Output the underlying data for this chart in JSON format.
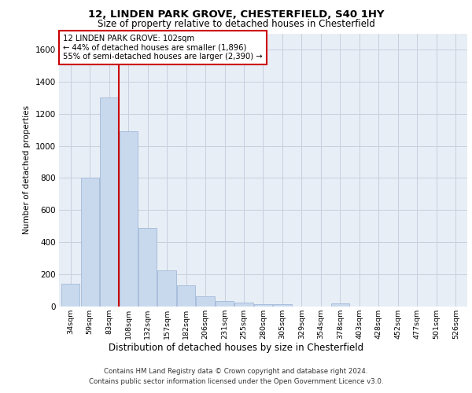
{
  "title1": "12, LINDEN PARK GROVE, CHESTERFIELD, S40 1HY",
  "title2": "Size of property relative to detached houses in Chesterfield",
  "xlabel": "Distribution of detached houses by size in Chesterfield",
  "ylabel": "Number of detached properties",
  "bar_labels": [
    "34sqm",
    "59sqm",
    "83sqm",
    "108sqm",
    "132sqm",
    "157sqm",
    "182sqm",
    "206sqm",
    "231sqm",
    "255sqm",
    "280sqm",
    "305sqm",
    "329sqm",
    "354sqm",
    "378sqm",
    "403sqm",
    "428sqm",
    "452sqm",
    "477sqm",
    "501sqm",
    "526sqm"
  ],
  "bar_values": [
    140,
    800,
    1300,
    1090,
    490,
    225,
    130,
    65,
    35,
    25,
    15,
    15,
    0,
    0,
    20,
    0,
    0,
    0,
    0,
    0,
    0
  ],
  "bar_color": "#c9d9ed",
  "bar_edge_color": "#a0b8d8",
  "vline_color": "#cc0000",
  "annotation_text": "12 LINDEN PARK GROVE: 102sqm\n← 44% of detached houses are smaller (1,896)\n55% of semi-detached houses are larger (2,390) →",
  "annotation_box_color": "#ffffff",
  "annotation_box_edge": "#cc0000",
  "ylim": [
    0,
    1700
  ],
  "yticks": [
    0,
    200,
    400,
    600,
    800,
    1000,
    1200,
    1400,
    1600
  ],
  "grid_color": "#c8d0de",
  "background_color": "#e8eef6",
  "footer1": "Contains HM Land Registry data © Crown copyright and database right 2024.",
  "footer2": "Contains public sector information licensed under the Open Government Licence v3.0."
}
